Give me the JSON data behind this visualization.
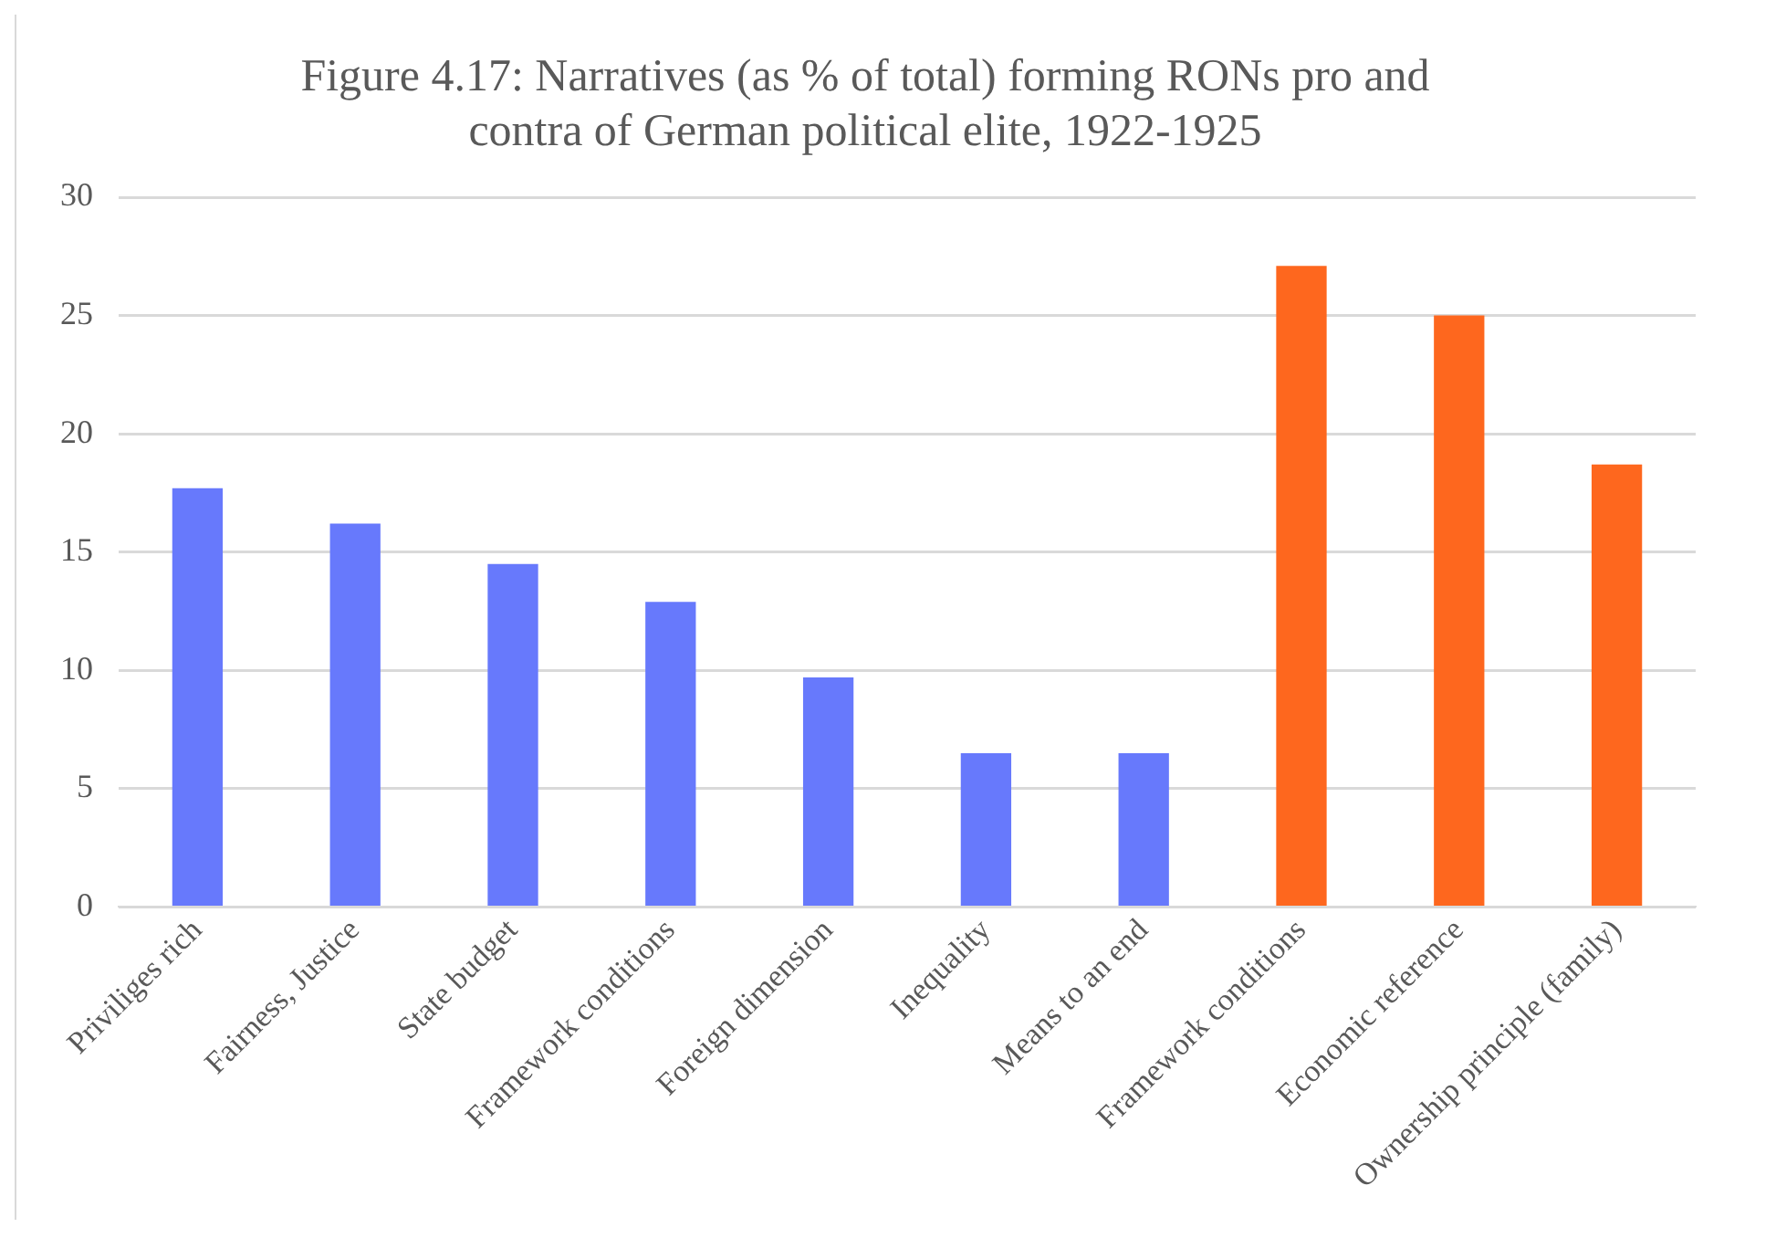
{
  "chart_data": {
    "type": "bar",
    "title": "Figure 4.17: Narratives (as % of total) forming RONs pro and contra of German political elite, 1922-1925",
    "categories": [
      "Priviliges rich",
      "Fairness, Justice",
      "State budget",
      "Framework conditions",
      "Foreign dimension",
      "Inequality",
      "Means to an end",
      "Framework conditions",
      "Economic reference",
      "Ownership principle (family)"
    ],
    "values": [
      17.7,
      16.2,
      14.5,
      12.9,
      9.7,
      6.5,
      6.5,
      27.1,
      25.0,
      18.7
    ],
    "colors": [
      "#6779fc",
      "#6779fc",
      "#6779fc",
      "#6779fc",
      "#6779fc",
      "#6779fc",
      "#6779fc",
      "#fe671e",
      "#fe671e",
      "#fe671e"
    ],
    "ylim": [
      0,
      30
    ],
    "yticks": [
      0,
      5,
      10,
      15,
      20,
      25,
      30
    ],
    "grid": "y",
    "legend": false
  }
}
